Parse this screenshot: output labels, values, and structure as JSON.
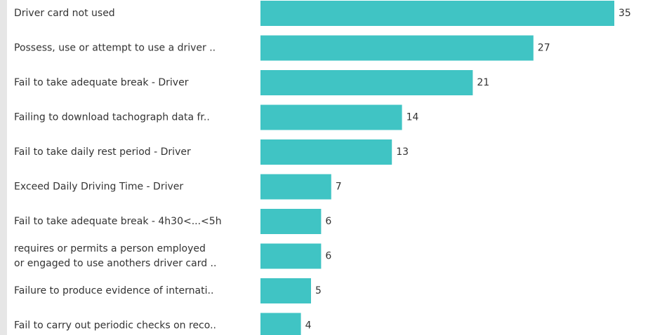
{
  "chart_data": {
    "type": "hbar",
    "color": "#40c4c4",
    "categories": [
      "Driver card not used",
      "Possess, use or attempt to use a driver ..",
      "Fail to take adequate break - Driver",
      "Failing to download tachograph data fr..",
      "Fail to take daily rest period - Driver",
      "Exceed Daily Driving Time - Driver",
      "Fail to take adequate break - 4h30<...<5h",
      [
        "requires or permits a person employed",
        "or engaged to use anothers driver card .."
      ],
      "Failure to produce evidence of internati..",
      "Fail to carry out periodic checks on reco.."
    ],
    "values": [
      35,
      27,
      21,
      14,
      13,
      7,
      6,
      6,
      5,
      4
    ]
  }
}
